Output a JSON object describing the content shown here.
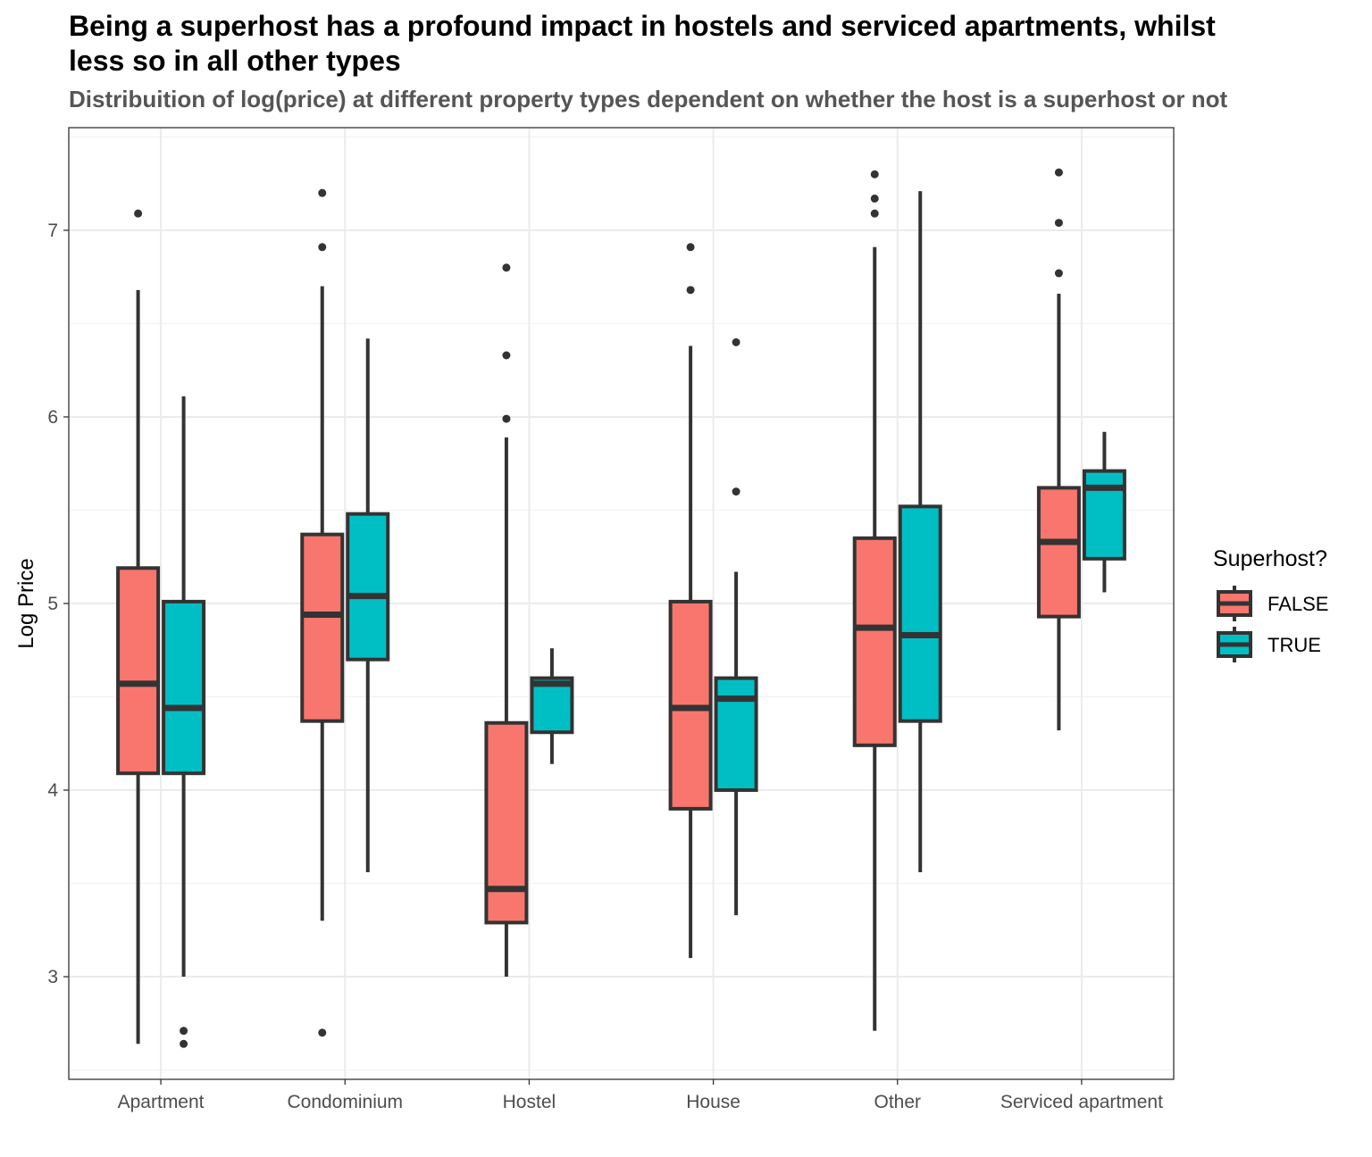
{
  "chart_data": {
    "type": "boxplot",
    "title": "Being a superhost has a profound impact in hostels and serviced apartments, whilst less so in all other types",
    "subtitle": "Distribuition of log(price) at different property types dependent on whether the host is a superhost or not",
    "xlabel": "",
    "ylabel": "Log Price",
    "ylim": [
      2.45,
      7.55
    ],
    "yticks": [
      "3",
      "4",
      "5",
      "6",
      "7"
    ],
    "grid": true,
    "legend_title": "Superhost?",
    "legend_position": "right",
    "categories": [
      "Apartment",
      "Condominium",
      "Hostel",
      "House",
      "Other",
      "Serviced apartment"
    ],
    "series": [
      {
        "name": "FALSE",
        "color": "#F8766D",
        "boxes": [
          {
            "low": 2.64,
            "q1": 4.09,
            "median": 4.57,
            "q3": 5.19,
            "high": 6.68,
            "outliers": [
              7.09
            ]
          },
          {
            "low": 3.3,
            "q1": 4.37,
            "median": 4.94,
            "q3": 5.37,
            "high": 6.7,
            "outliers": [
              7.2,
              6.91,
              2.7
            ]
          },
          {
            "low": 3.0,
            "q1": 3.29,
            "median": 3.47,
            "q3": 4.36,
            "high": 5.89,
            "outliers": [
              6.8,
              6.33,
              5.99
            ]
          },
          {
            "low": 3.1,
            "q1": 3.9,
            "median": 4.44,
            "q3": 5.01,
            "high": 6.38,
            "outliers": [
              6.91,
              6.68
            ]
          },
          {
            "low": 2.71,
            "q1": 4.24,
            "median": 4.87,
            "q3": 5.35,
            "high": 6.91,
            "outliers": [
              7.3,
              7.17,
              7.09
            ]
          },
          {
            "low": 4.32,
            "q1": 4.93,
            "median": 5.33,
            "q3": 5.62,
            "high": 6.66,
            "outliers": [
              7.31,
              7.04,
              6.77
            ]
          }
        ]
      },
      {
        "name": "TRUE",
        "color": "#00BFC4",
        "boxes": [
          {
            "low": 3.0,
            "q1": 4.09,
            "median": 4.44,
            "q3": 5.01,
            "high": 6.11,
            "outliers": [
              2.71,
              2.64
            ]
          },
          {
            "low": 3.56,
            "q1": 4.7,
            "median": 5.04,
            "q3": 5.48,
            "high": 6.42,
            "outliers": []
          },
          {
            "low": 4.14,
            "q1": 4.31,
            "median": 4.57,
            "q3": 4.6,
            "high": 4.76,
            "outliers": []
          },
          {
            "low": 3.33,
            "q1": 4.0,
            "median": 4.49,
            "q3": 4.6,
            "high": 5.17,
            "outliers": [
              6.4,
              5.6
            ]
          },
          {
            "low": 3.56,
            "q1": 4.37,
            "median": 4.83,
            "q3": 5.52,
            "high": 7.21,
            "outliers": []
          },
          {
            "low": 5.06,
            "q1": 5.24,
            "median": 5.62,
            "q3": 5.71,
            "high": 5.92,
            "outliers": []
          }
        ]
      }
    ]
  }
}
